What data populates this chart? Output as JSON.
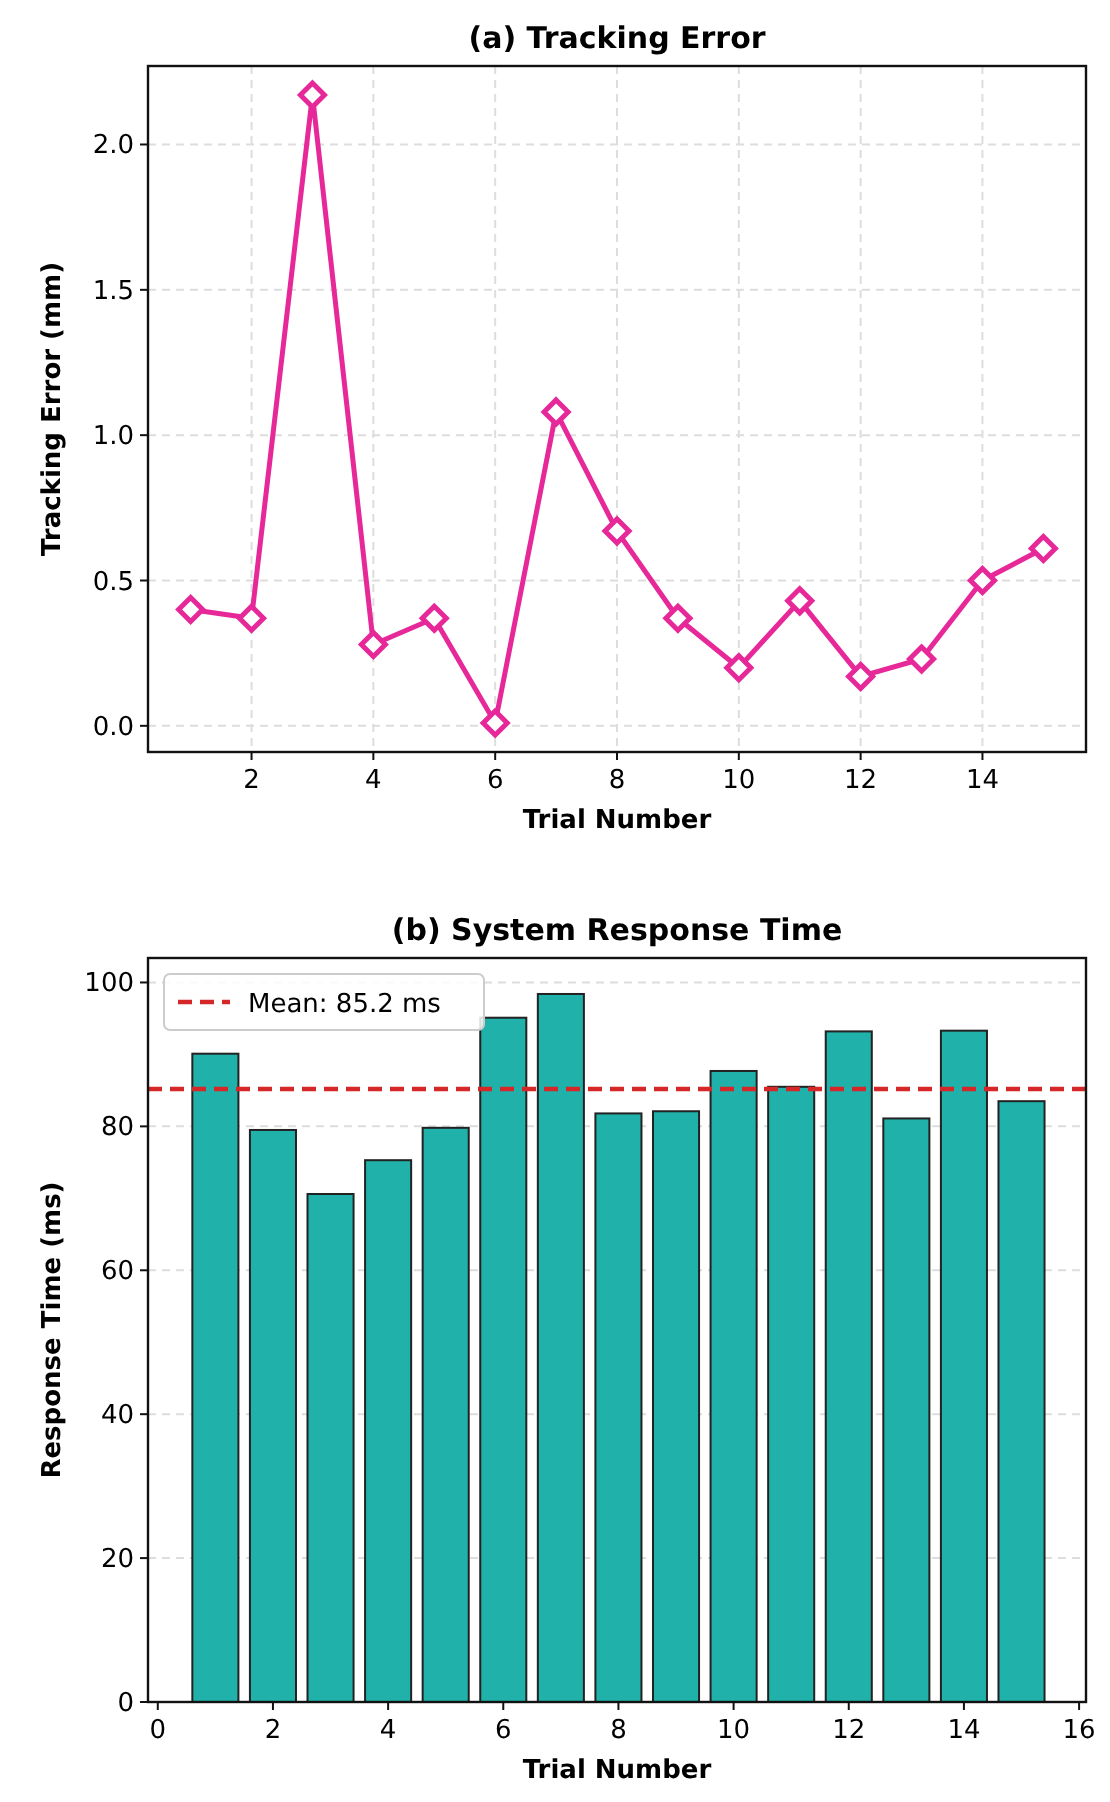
{
  "chart_data": [
    {
      "type": "line",
      "title": "(a) Tracking Error",
      "xlabel": "Trial Number",
      "ylabel": "Tracking Error (mm)",
      "x": [
        1,
        2,
        3,
        4,
        5,
        6,
        7,
        8,
        9,
        10,
        11,
        12,
        13,
        14,
        15
      ],
      "series": [
        {
          "color": "#e62899",
          "values": [
            0.4,
            0.37,
            2.17,
            0.28,
            0.37,
            0.01,
            1.08,
            0.67,
            0.37,
            0.2,
            0.43,
            0.17,
            0.23,
            0.5,
            0.61
          ]
        }
      ],
      "marker": "diamond",
      "line_style": "solid",
      "grid": true,
      "xlim": [
        0.3,
        15.7
      ],
      "xticks": [
        2,
        4,
        6,
        8,
        10,
        12,
        14
      ],
      "ylim": [
        -0.09,
        2.27
      ],
      "yticks": [
        {
          "value": 0,
          "label": "0.0"
        },
        0.5,
        {
          "value": 1,
          "label": "1.0"
        },
        1.5,
        {
          "value": 2,
          "label": "2.0"
        }
      ]
    },
    {
      "type": "bar",
      "title": "(b) System Response Time",
      "xlabel": "Trial Number",
      "ylabel": "Response Time (ms)",
      "x": [
        1,
        2,
        3,
        4,
        5,
        6,
        7,
        8,
        9,
        10,
        11,
        12,
        13,
        14,
        15
      ],
      "series": [
        {
          "color": "#20b2aa",
          "values": [
            90.1,
            79.5,
            70.6,
            75.3,
            79.8,
            95.1,
            98.4,
            81.8,
            82.1,
            87.7,
            85.5,
            93.2,
            81.1,
            93.3,
            83.5
          ]
        }
      ],
      "ref_lines": [
        {
          "axis": "y",
          "value": 85.2,
          "label": "Mean: 85.2 ms",
          "color": "#d62728",
          "line_style": "dashed"
        }
      ],
      "legend": "top left",
      "grid": "y",
      "xlim": [
        -0.17,
        16.12
      ],
      "xticks": [
        0,
        2,
        4,
        6,
        8,
        10,
        12,
        14,
        16
      ],
      "ylim": [
        0,
        103.4
      ],
      "yticks": [
        0,
        20,
        40,
        60,
        80,
        100
      ]
    }
  ]
}
